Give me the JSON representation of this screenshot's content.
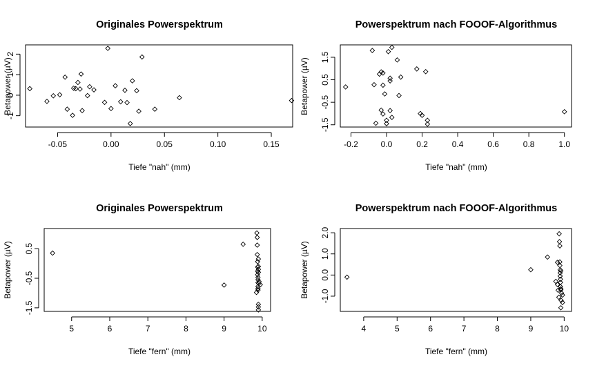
{
  "chart_data": [
    {
      "type": "scatter",
      "title": "Originales Powerspektrum",
      "xlabel": "Tiefe \"nah\" (mm)",
      "ylabel": "Betapower (µV)",
      "xlim": [
        -0.08,
        0.17
      ],
      "ylim": [
        -1.55,
        2.45
      ],
      "xticks": [
        -0.05,
        0.0,
        0.05,
        0.1,
        0.15
      ],
      "xtick_labels": [
        "-0.05",
        "0.00",
        "0.05",
        "0.10",
        "0.15"
      ],
      "yticks": [
        -1,
        0,
        1,
        2
      ],
      "ytick_labels": [
        "-1",
        "0",
        "1",
        "2"
      ],
      "x": [
        -0.076,
        -0.06,
        -0.054,
        -0.048,
        -0.043,
        -0.041,
        -0.036,
        -0.035,
        -0.033,
        -0.031,
        -0.029,
        -0.028,
        -0.027,
        -0.022,
        -0.02,
        -0.016,
        -0.006,
        -0.003,
        0.0,
        0.004,
        0.009,
        0.013,
        0.015,
        0.018,
        0.02,
        0.024,
        0.026,
        0.029,
        0.041,
        0.064,
        0.169
      ],
      "y": [
        0.32,
        -0.3,
        -0.03,
        0.02,
        0.88,
        -0.68,
        -0.98,
        0.34,
        0.32,
        0.62,
        0.3,
        1.03,
        -0.75,
        -0.02,
        0.41,
        0.26,
        -0.35,
        2.28,
        -0.65,
        0.46,
        -0.32,
        0.24,
        -0.36,
        -1.38,
        0.7,
        0.22,
        -0.78,
        1.86,
        -0.68,
        -0.12,
        -0.26
      ]
    },
    {
      "type": "scatter",
      "title": "Powerspektrum nach FOOOF-Algorithmus",
      "xlabel": "Tiefe \"nah\" (mm)",
      "ylabel": "Betapower (µV)",
      "xlim": [
        -0.26,
        1.04
      ],
      "ylim": [
        -1.6,
        2.05
      ],
      "xticks": [
        -0.2,
        0.0,
        0.2,
        0.4,
        0.6,
        0.8,
        1.0
      ],
      "xtick_labels": [
        "-0.2",
        "0.0",
        "0.2",
        "0.4",
        "0.6",
        "0.8",
        "1.0"
      ],
      "yticks": [
        -1.5,
        -0.5,
        0.5,
        1.5
      ],
      "ytick_labels": [
        "-1.5",
        "-0.5",
        "0.5",
        "1.5"
      ],
      "x": [
        -0.23,
        -0.08,
        -0.07,
        -0.06,
        -0.04,
        -0.03,
        -0.03,
        -0.02,
        -0.02,
        -0.02,
        -0.01,
        0.0,
        0.0,
        0.01,
        0.02,
        0.02,
        0.02,
        0.03,
        0.03,
        0.06,
        0.07,
        0.08,
        0.17,
        0.19,
        0.2,
        0.22,
        0.23,
        0.23,
        1.0
      ],
      "y": [
        0.18,
        1.8,
        0.28,
        -1.43,
        0.75,
        0.85,
        -0.85,
        -1.02,
        0.8,
        0.26,
        -0.13,
        -1.3,
        -1.45,
        1.75,
        0.57,
        0.45,
        -0.87,
        1.94,
        -1.17,
        1.38,
        -0.2,
        0.62,
        0.98,
        -1.0,
        -1.08,
        0.86,
        -1.47,
        -1.3,
        -0.92
      ]
    },
    {
      "type": "scatter",
      "title": "Originales Powerspektrum",
      "xlabel": "Tiefe \"fern\" (mm)",
      "ylabel": "Betapower (µV)",
      "xlim": [
        4.28,
        10.22
      ],
      "ylim": [
        -1.62,
        1.18
      ],
      "xticks": [
        5,
        6,
        7,
        8,
        9,
        10
      ],
      "xtick_labels": [
        "5",
        "6",
        "7",
        "8",
        "9",
        "10"
      ],
      "yticks": [
        -1.5,
        -0.5,
        0.5
      ],
      "ytick_labels": [
        "-1.5",
        "-0.5",
        "0.5"
      ],
      "x": [
        4.5,
        9.0,
        9.5,
        9.85,
        9.86,
        9.87,
        9.87,
        9.87,
        9.88,
        9.88,
        9.88,
        9.88,
        9.89,
        9.89,
        9.89,
        9.89,
        9.89,
        9.89,
        9.9,
        9.9,
        9.9,
        9.9,
        9.9,
        9.9,
        9.9,
        9.91,
        9.92,
        9.95
      ],
      "y": [
        0.35,
        -0.73,
        0.65,
        -0.98,
        1.03,
        0.88,
        0.62,
        0.3,
        0.06,
        -0.12,
        -0.26,
        -0.38,
        -0.47,
        -0.55,
        -0.65,
        -0.78,
        -0.85,
        -0.9,
        -1.38,
        -1.47,
        -1.57,
        -0.2,
        -0.3,
        0.15,
        -0.1,
        -0.68,
        -0.62,
        -0.72
      ]
    },
    {
      "type": "scatter",
      "title": "Powerspektrum nach FOOOF-Algorithmus",
      "xlabel": "Tiefe \"fern\" (mm)",
      "ylabel": "Betapower (µV)",
      "xlim": [
        3.3,
        10.22
      ],
      "ylim": [
        -1.72,
        2.2
      ],
      "xticks": [
        4,
        5,
        6,
        7,
        8,
        9,
        10
      ],
      "xtick_labels": [
        "4",
        "5",
        "6",
        "7",
        "8",
        "9",
        "10"
      ],
      "yticks": [
        -1.0,
        0.0,
        1.0,
        2.0
      ],
      "ytick_labels": [
        "-1.0",
        "0.0",
        "1.0",
        "2.0"
      ],
      "x": [
        3.5,
        9.0,
        9.5,
        9.75,
        9.8,
        9.8,
        9.82,
        9.84,
        9.85,
        9.86,
        9.87,
        9.87,
        9.87,
        9.88,
        9.88,
        9.88,
        9.89,
        9.89,
        9.89,
        9.9,
        9.9,
        9.9,
        9.9,
        9.91,
        9.92,
        9.95,
        9.95
      ],
      "y": [
        -0.1,
        0.25,
        0.85,
        -0.3,
        0.6,
        -0.45,
        -0.72,
        -1.05,
        1.95,
        1.58,
        1.38,
        0.62,
        0.45,
        0.25,
        0.1,
        -0.05,
        -0.2,
        -0.35,
        -0.55,
        -0.65,
        -0.7,
        -1.55,
        0.2,
        -1.2,
        -0.85,
        -1.3,
        -0.95
      ]
    }
  ]
}
